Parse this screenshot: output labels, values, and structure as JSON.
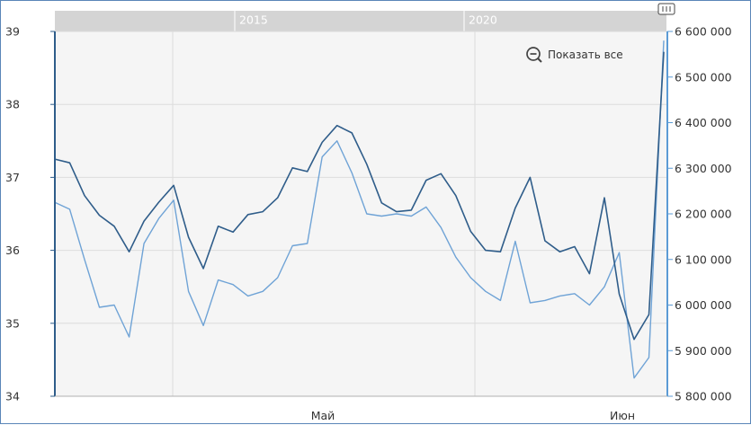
{
  "chart_data": {
    "type": "line",
    "navigator": {
      "labels": [
        "2015",
        "2020"
      ]
    },
    "zoom_button": {
      "label": "Показать все",
      "icon": "zoom-out-icon"
    },
    "x_tick_labels": [
      "Май",
      "Июн"
    ],
    "y_left": {
      "ticks": [
        "34",
        "35",
        "36",
        "37",
        "38",
        "39"
      ],
      "min": 34,
      "max": 39
    },
    "y_right": {
      "ticks": [
        "5 800 000",
        "5 900 000",
        "6 000 000",
        "6 100 000",
        "6 200 000",
        "6 300 000",
        "6 400 000",
        "6 500 000",
        "6 600 000"
      ],
      "min": 5800000,
      "max": 6600000
    },
    "grid": true,
    "colors": {
      "series_left": "#2f5d8a",
      "series_right": "#6fa3d6",
      "axis_right": "#5b9bd5",
      "navigator": "#d4d4d4"
    },
    "series": [
      {
        "axis": "left",
        "values": [
          37.25,
          37.2,
          36.75,
          36.48,
          36.33,
          35.98,
          36.4,
          36.66,
          36.89,
          36.18,
          35.75,
          36.33,
          36.25,
          36.49,
          36.53,
          36.72,
          37.13,
          37.08,
          37.48,
          37.71,
          37.61,
          37.18,
          36.65,
          36.53,
          36.55,
          36.96,
          37.05,
          36.75,
          36.26,
          36.0,
          35.98,
          36.58,
          37.0,
          36.13,
          35.98,
          36.05,
          35.68,
          36.72,
          35.4,
          34.78,
          35.12,
          38.72
        ]
      },
      {
        "axis": "right",
        "values": [
          6225000,
          6210000,
          6100000,
          5995000,
          6000000,
          5930000,
          6135000,
          6190000,
          6230000,
          6030000,
          5955000,
          6055000,
          6045000,
          6020000,
          6030000,
          6060000,
          6130000,
          6135000,
          6325000,
          6360000,
          6290000,
          6200000,
          6195000,
          6200000,
          6195000,
          6215000,
          6170000,
          6105000,
          6060000,
          6030000,
          6010000,
          6140000,
          6005000,
          6010000,
          6020000,
          6025000,
          6000000,
          6040000,
          6115000,
          5840000,
          5885000,
          6580000
        ]
      }
    ]
  }
}
